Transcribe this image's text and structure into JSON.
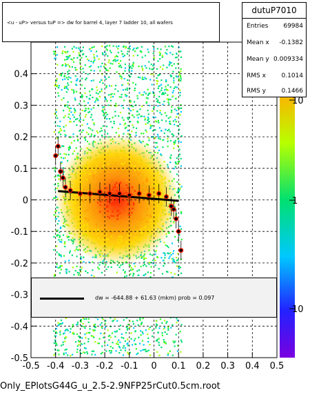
{
  "chart_data": {
    "type": "heatmap",
    "title": "<u - uP>       versus  tuP =>  dw for barrel 4, layer 7 ladder 10, all wafers",
    "xlim": [
      -0.5,
      0.5
    ],
    "ylim": [
      -0.5,
      0.5
    ],
    "x_ticks": [
      "-0.5",
      "-0.4",
      "-0.3",
      "-0.2",
      "-0.1",
      "0",
      "0.1",
      "0.2",
      "0.3",
      "0.4",
      "0.5"
    ],
    "y_ticks": [
      "-0.5",
      "-0.4",
      "-0.3",
      "-0.2",
      "-0.1",
      "0",
      "0.1",
      "0.2",
      "0.3",
      "0.4"
    ],
    "colorbar_ticks": [
      "10",
      "1",
      "10"
    ],
    "grid": true,
    "stats": {
      "name": "dutuP7010",
      "entries_label": "Entries",
      "entries": "69984",
      "mean_x_label": "Mean x",
      "mean_x": "-0.1382",
      "mean_y_label": "Mean y",
      "mean_y": "0.009334",
      "rms_x_label": "RMS x",
      "rms_x": "0.1014",
      "rms_y_label": "RMS y",
      "rms_y": "0.1466"
    },
    "fit_label": "dw = -644.88 + 61.63 (mkm) prob = 0.097",
    "fit_line": {
      "x": [
        -0.39,
        0.1
      ],
      "y": [
        0.028,
        -0.003
      ]
    },
    "profile_points": {
      "x": [
        -0.4,
        -0.39,
        -0.38,
        -0.37,
        -0.36,
        -0.34,
        -0.3,
        -0.26,
        -0.22,
        -0.18,
        -0.14,
        -0.1,
        -0.06,
        -0.02,
        0.02,
        0.05,
        0.07,
        0.08,
        0.09,
        0.1,
        0.11
      ],
      "y": [
        0.14,
        0.17,
        0.09,
        0.07,
        0.04,
        0.03,
        0.02,
        0.02,
        0.025,
        0.02,
        0.02,
        0.015,
        0.02,
        0.015,
        0.02,
        0.01,
        -0.02,
        -0.03,
        -0.06,
        -0.1,
        -0.16
      ]
    },
    "file_name": "Only_EPlotsG44G_u_2.5-2.9NFP25rCut0.5cm.root"
  }
}
